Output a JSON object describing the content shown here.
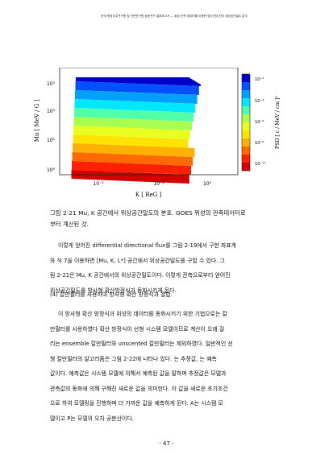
{
  "header": "한국 항공우주연구원 및 천문연구원 공동연구 결과보고서 — 위성 관측 데이터를 이용한 방사선대 전자 위상공간밀도 분석",
  "figure": {
    "y_label": "Mu [ MeV / G ]",
    "x_label": "K [ ReG ]",
    "y_ticks": [
      "10³",
      "10²",
      "10¹",
      "10⁰"
    ],
    "x_ticks": [
      "10⁻²",
      "10⁻¹",
      "10⁰"
    ],
    "colorbar_label": "PSD [ c / MeV / cm ]³",
    "colorbar_ticks": [
      "10⁻²",
      "10⁻⁴",
      "10⁻⁶",
      "10⁻⁸",
      "10⁻¹⁰"
    ]
  },
  "caption": {
    "line1": "그림 2-21 Mu, K 공간에서 위상공간밀도의 분포. GOES 위성의 관측데이터로",
    "line2": "부터 계산된 것."
  },
  "para1": {
    "lines": [
      "이렇게 얻어진 differential directional flux를 그림 2-19에서 구한 좌표계",
      "와 식 7을 이용하면 [Mu, K, L*] 공간에서 위상공간밀도를 구할 수 있다. 그",
      "림 2-21은 Mu, K 공간에서의 위상공간밀도이다. 이렇게 관측으로부터 얻어진",
      "위상공간밀도를 방사형 확산방정식과 동화시키게 된다."
    ]
  },
  "section_title": "(4) 칼만필터를 사용하여 방사형 확산 방정식과 결합.",
  "para2": {
    "lines": [
      "이 방사형 확산 방정식과 위성의 데이터를 동화시키기 위한 기법으로는 칼",
      "만필터를 사용하였다 확산 방정식이 선형 시스템 모델이므로 계산이 오래 걸",
      "리는 ensemble 칼만필터와 unscented 칼만필터는 제외하였다. 일반적인 선",
      "형 칼만필터의 알고리즘은 그림 2-22에 나타나 있다. 는 추정값, 는 예측",
      "값이다. 예측값은 시스템 모델에 의해서 예측된 값을 말하며 추정값은 모델과",
      "관측값의 동화에 의해 구해진 새로운 값을 의미한다. 이 값을 새로운 초기조건",
      "으로 하여 모델링을 진행하며 더 가까운 값을 예측하게 된다. A는 시스템 모",
      "델이고 P는 모델의 오차 공분산이다."
    ]
  },
  "page_number": "- 47 -",
  "chart_data": {
    "type": "heatmap",
    "title": "",
    "xlabel": "K [ ReG ]",
    "ylabel": "Mu [ MeV / G ]",
    "xscale": "log",
    "yscale": "log",
    "xlim": [
      0.005,
      3
    ],
    "ylim": [
      0.6,
      2000
    ],
    "colorbar": {
      "label": "PSD [ c / MeV / cm ]³",
      "scale": "log",
      "range": [
        1e-11,
        0.01
      ],
      "ticks": [
        0.01,
        0.0001,
        1e-06,
        1e-08,
        1e-10
      ],
      "colors": [
        "#d00000",
        "#ff2000",
        "#ff6a00",
        "#ffb000",
        "#ffe400",
        "#e8ff20",
        "#a8ff50",
        "#50ffa8",
        "#00e8ff",
        "#00a0ff",
        "#0050ff",
        "#0000c8"
      ]
    },
    "description": "Band structure: high Mu top is blue, decreasing Mu to red; bands slope down toward larger K."
  }
}
